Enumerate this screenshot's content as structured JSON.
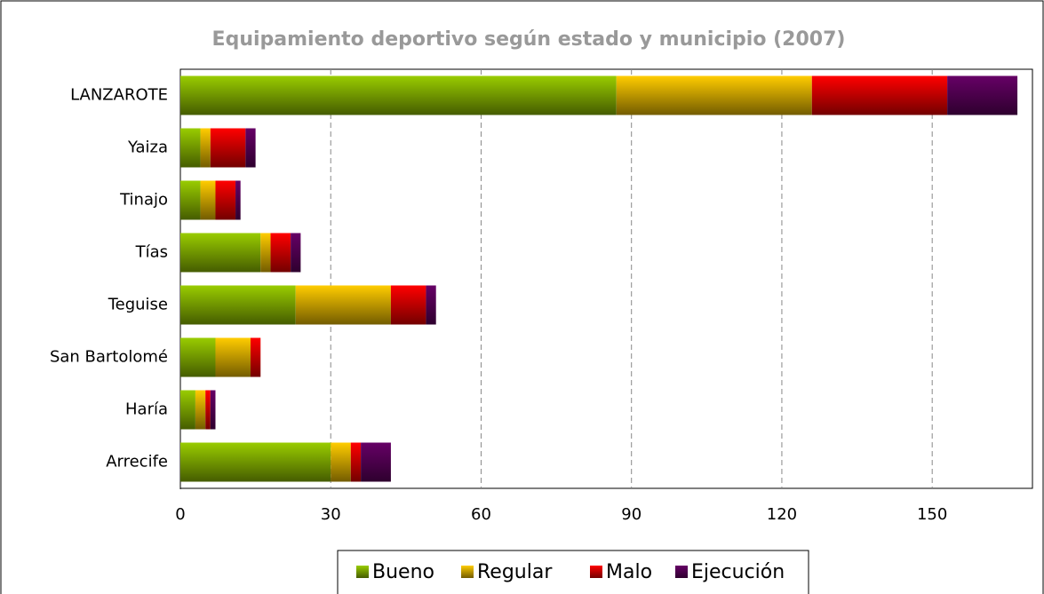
{
  "chart_data": {
    "type": "stacked_bar_horizontal",
    "title": "Equipamiento deportivo según estado y municipio (2007)",
    "categories": [
      "LANZAROTE",
      "Yaiza",
      "Tinajo",
      "Tías",
      "Teguise",
      "San Bartolomé",
      "Haría",
      "Arrecife"
    ],
    "series": [
      {
        "name": "Bueno",
        "color": "#99cc00",
        "values": [
          87,
          4,
          4,
          16,
          23,
          7,
          3,
          30
        ]
      },
      {
        "name": "Regular",
        "color": "#ffcc00",
        "values": [
          39,
          2,
          3,
          2,
          19,
          7,
          2,
          4
        ]
      },
      {
        "name": "Malo",
        "color": "#ff0000",
        "values": [
          27,
          7,
          4,
          4,
          7,
          2,
          1,
          2
        ]
      },
      {
        "name": "Ejecución",
        "color": "#660066",
        "values": [
          14,
          2,
          1,
          2,
          2,
          0,
          1,
          6
        ]
      }
    ],
    "xlim": [
      0,
      170
    ],
    "xticks": [
      0,
      30,
      60,
      90,
      120,
      150
    ],
    "grid": true,
    "legend": "bottom"
  }
}
